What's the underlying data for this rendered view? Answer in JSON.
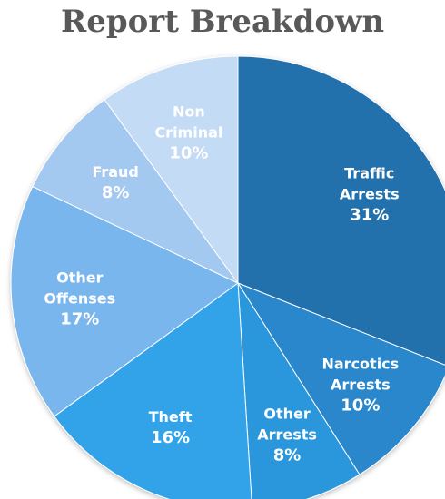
{
  "chart_data": {
    "type": "pie",
    "title": "Report Breakdown",
    "slices": [
      {
        "label": [
          "Traffic",
          "Arrests"
        ],
        "value": 31,
        "display": "31%",
        "color": "#2471ad"
      },
      {
        "label": [
          "Narcotics",
          "Arrests"
        ],
        "value": 10,
        "display": "10%",
        "color": "#2a87cb"
      },
      {
        "label": [
          "Other",
          "Arrests"
        ],
        "value": 8,
        "display": "8%",
        "color": "#2b96dc"
      },
      {
        "label": [
          "Theft"
        ],
        "value": 16,
        "display": "16%",
        "color": "#33a3e9"
      },
      {
        "label": [
          "Other",
          "Offenses"
        ],
        "value": 17,
        "display": "17%",
        "color": "#7ab6ee"
      },
      {
        "label": [
          "Fraud"
        ],
        "value": 8,
        "display": "8%",
        "color": "#a4c9f1"
      },
      {
        "label": [
          "Non",
          "Criminal"
        ],
        "value": 10,
        "display": "10%",
        "color": "#c3dbf5"
      }
    ]
  }
}
